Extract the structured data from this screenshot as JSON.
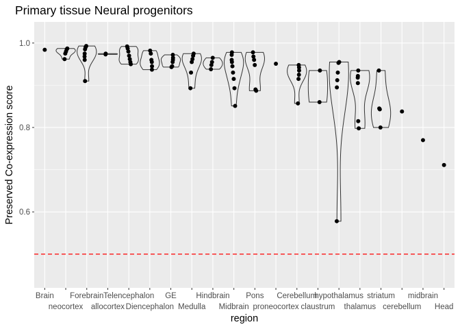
{
  "chart_data": {
    "type": "violin",
    "title": "Primary tissue Neural progenitors",
    "xlabel": "region",
    "ylabel": "Preserved Co-expression score",
    "ylim": [
      0.42,
      1.05
    ],
    "yticks": [
      0.6,
      0.8,
      1.0
    ],
    "ytick_labels": [
      "0.6",
      "0.8",
      "1.0"
    ],
    "grid": true,
    "reference_line": {
      "y": 0.5,
      "color": "#ff0000",
      "style": "dashed"
    },
    "colors": {
      "panel": "#ebebeb",
      "grid": "#ffffff",
      "points": "#000000",
      "violin": "#333333",
      "text": "#4d4d4d"
    },
    "categories": [
      "Brain",
      "neocortex",
      "Forebrain",
      "allocortex",
      "Telencephalon",
      "Diencephalon",
      "GE",
      "Medulla",
      "Hindbrain",
      "Midbrain",
      "Pons",
      "proneocortex",
      "Cerebellum",
      "claustrum",
      "hypothalamus",
      "thalamus",
      "striatum",
      "cerebellum",
      "midbrain",
      "Head"
    ],
    "label_row": [
      0,
      1,
      0,
      1,
      0,
      1,
      0,
      1,
      0,
      1,
      0,
      1,
      0,
      1,
      0,
      1,
      0,
      1,
      0,
      1
    ],
    "points": [
      [
        0.984
      ],
      [
        0.987,
        0.985,
        0.98,
        0.975,
        0.962
      ],
      [
        0.993,
        0.99,
        0.985,
        0.975,
        0.968,
        0.96,
        0.91
      ],
      [
        0.975,
        0.973
      ],
      [
        0.992,
        0.987,
        0.98,
        0.97,
        0.962,
        0.955,
        0.95
      ],
      [
        0.982,
        0.975,
        0.96,
        0.955,
        0.945,
        0.937
      ],
      [
        0.972,
        0.965,
        0.96,
        0.955,
        0.945,
        0.943
      ],
      [
        0.975,
        0.97,
        0.962,
        0.955,
        0.93,
        0.893
      ],
      [
        0.965,
        0.955,
        0.948,
        0.938
      ],
      [
        0.978,
        0.972,
        0.96,
        0.955,
        0.945,
        0.93,
        0.915,
        0.893,
        0.851
      ],
      [
        0.978,
        0.968,
        0.96,
        0.948,
        0.89,
        0.887
      ],
      [
        0.951
      ],
      [
        0.948,
        0.942,
        0.935,
        0.925,
        0.915,
        0.857
      ],
      [
        0.935,
        0.86
      ],
      [
        0.955,
        0.953,
        0.93,
        0.912,
        0.895,
        0.578
      ],
      [
        0.935,
        0.922,
        0.918,
        0.905,
        0.815,
        0.798
      ],
      [
        0.935,
        0.845,
        0.843,
        0.8
      ],
      [
        0.838
      ],
      [
        0.77
      ],
      [
        0.711
      ]
    ]
  }
}
